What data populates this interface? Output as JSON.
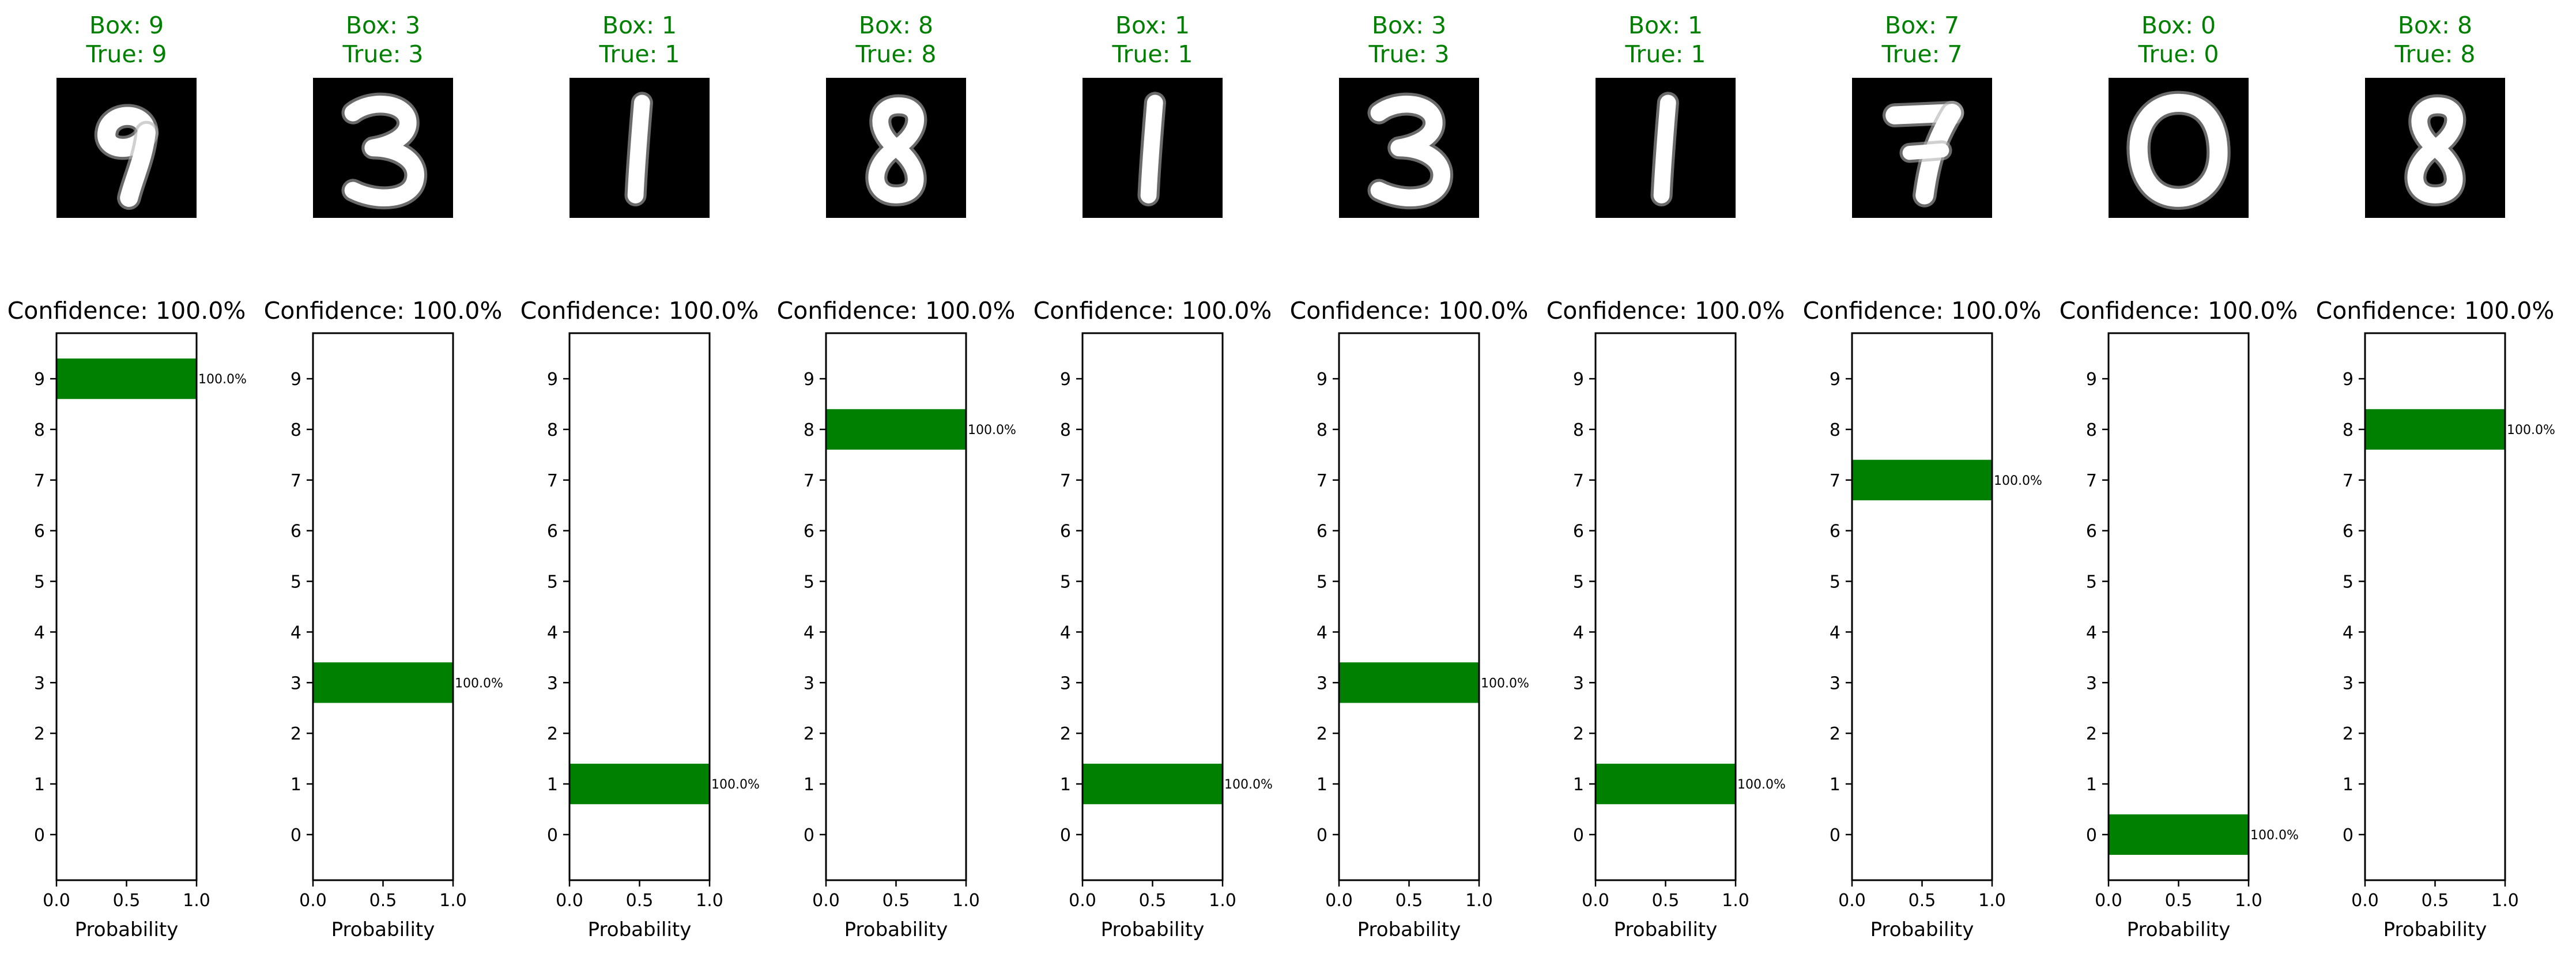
{
  "chart_data": {
    "type": "bar",
    "orientation": "horizontal",
    "panel_count": 10,
    "categories": [
      "0",
      "1",
      "2",
      "3",
      "4",
      "5",
      "6",
      "7",
      "8",
      "9"
    ],
    "xlabel": "Probability",
    "xlim": [
      0,
      1.0
    ],
    "xticks": [
      "0.0",
      "0.5",
      "1.0"
    ],
    "ylim": [
      -0.9,
      9.9
    ],
    "grid": false,
    "bar_color": "#008000",
    "title_color": "#008000",
    "panels": [
      {
        "box_label": "Box: 9",
        "true_label": "True: 9",
        "digit": 9,
        "confidence_title": "Confidence: 100.0%",
        "bar_category": 9,
        "probability": 1.0,
        "value_label": "100.0%"
      },
      {
        "box_label": "Box: 3",
        "true_label": "True: 3",
        "digit": 3,
        "confidence_title": "Confidence: 100.0%",
        "bar_category": 3,
        "probability": 1.0,
        "value_label": "100.0%"
      },
      {
        "box_label": "Box: 1",
        "true_label": "True: 1",
        "digit": 1,
        "confidence_title": "Confidence: 100.0%",
        "bar_category": 1,
        "probability": 1.0,
        "value_label": "100.0%"
      },
      {
        "box_label": "Box: 8",
        "true_label": "True: 8",
        "digit": 8,
        "confidence_title": "Confidence: 100.0%",
        "bar_category": 8,
        "probability": 1.0,
        "value_label": "100.0%"
      },
      {
        "box_label": "Box: 1",
        "true_label": "True: 1",
        "digit": 1,
        "confidence_title": "Confidence: 100.0%",
        "bar_category": 1,
        "probability": 1.0,
        "value_label": "100.0%"
      },
      {
        "box_label": "Box: 3",
        "true_label": "True: 3",
        "digit": 3,
        "confidence_title": "Confidence: 100.0%",
        "bar_category": 3,
        "probability": 1.0,
        "value_label": "100.0%"
      },
      {
        "box_label": "Box: 1",
        "true_label": "True: 1",
        "digit": 1,
        "confidence_title": "Confidence: 100.0%",
        "bar_category": 1,
        "probability": 1.0,
        "value_label": "100.0%"
      },
      {
        "box_label": "Box: 7",
        "true_label": "True: 7",
        "digit": 7,
        "confidence_title": "Confidence: 100.0%",
        "bar_category": 7,
        "probability": 1.0,
        "value_label": "100.0%"
      },
      {
        "box_label": "Box: 0",
        "true_label": "True: 0",
        "digit": 0,
        "confidence_title": "Confidence: 100.0%",
        "bar_category": 0,
        "probability": 1.0,
        "value_label": "100.0%"
      },
      {
        "box_label": "Box: 8",
        "true_label": "True: 8",
        "digit": 8,
        "confidence_title": "Confidence: 100.0%",
        "bar_category": 8,
        "probability": 1.0,
        "value_label": "100.0%"
      }
    ]
  }
}
